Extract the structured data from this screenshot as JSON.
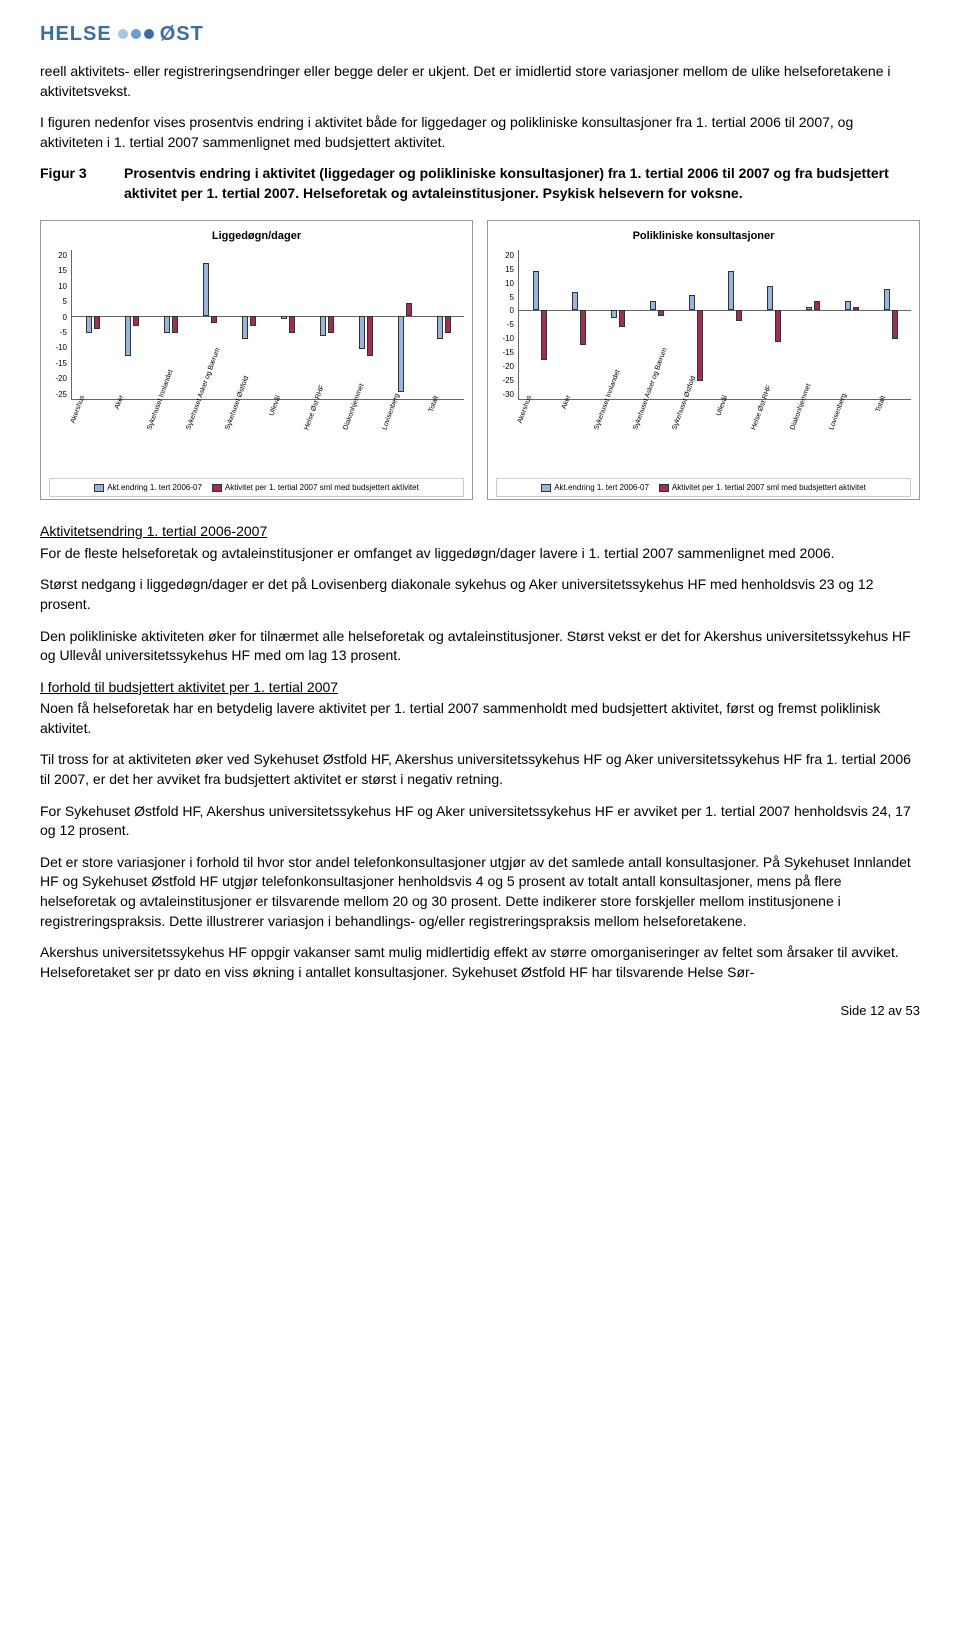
{
  "logo": {
    "left": "HELSE",
    "right": "ØST",
    "dot_colors": [
      "#a6c5e3",
      "#6f9dcc",
      "#3b6ea5"
    ]
  },
  "paragraphs": {
    "p1": "reell aktivitets- eller registreringsendringer eller begge deler er ukjent. Det er imidlertid store variasjoner mellom de ulike helseforetakene i aktivitetsvekst.",
    "p2": "I figuren nedenfor vises prosentvis endring i aktivitet både for liggedager og polikliniske konsultasjoner fra 1. tertial 2006 til 2007, og aktiviteten i 1. tertial 2007 sammenlignet med budsjettert aktivitet.",
    "fig_label": "Figur 3",
    "fig_title": "Prosentvis endring i aktivitet (liggedager og polikliniske konsultasjoner) fra 1. tertial 2006 til 2007 og fra budsjettert aktivitet per 1. tertial 2007. Helseforetak og avtaleinstitusjoner. Psykisk helsevern for voksne.",
    "h1": "Aktivitetsendring 1. tertial 2006-2007",
    "p3": "For de fleste helseforetak og avtaleinstitusjoner er omfanget av liggedøgn/dager lavere i 1. tertial 2007 sammenlignet med 2006.",
    "p4": "Størst nedgang i liggedøgn/dager er det på Lovisenberg diakonale sykehus og Aker universitetssykehus HF med henholdsvis 23 og 12 prosent.",
    "p5": "Den polikliniske aktiviteten øker for tilnærmet alle helseforetak og avtaleinstitusjoner. Størst vekst er det for Akershus universitetssykehus HF og Ullevål universitetssykehus HF med om lag 13 prosent.",
    "h2": "I forhold til budsjettert aktivitet per 1. tertial 2007",
    "p6": "Noen få helseforetak har en betydelig lavere aktivitet per 1. tertial 2007 sammenholdt med budsjettert aktivitet, først og fremst poliklinisk aktivitet.",
    "p7": "Til tross for at aktiviteten øker ved Sykehuset Østfold HF, Akershus universitetssykehus HF og Aker universitetssykehus HF fra 1. tertial 2006 til 2007, er det her avviket fra budsjettert aktivitet er størst i negativ retning.",
    "p8": "For Sykehuset Østfold HF, Akershus universitetssykehus HF og Aker universitetssykehus HF er avviket per 1. tertial 2007 henholdsvis 24, 17 og 12 prosent.",
    "p9": "Det er store variasjoner i forhold til hvor stor andel telefonkonsultasjoner utgjør av det samlede antall konsultasjoner. På Sykehuset Innlandet HF og Sykehuset Østfold HF utgjør telefonkonsultasjoner henholdsvis 4 og 5 prosent av totalt antall konsultasjoner, mens på flere helseforetak og avtaleinstitusjoner er tilsvarende mellom 20 og 30 prosent. Dette indikerer store forskjeller mellom institusjonene i registreringspraksis. Dette illustrerer variasjon i behandlings- og/eller registreringspraksis mellom helseforetakene.",
    "p10": "Akershus universitetssykehus HF oppgir vakanser samt mulig midlertidig effekt av større omorganiseringer av feltet som årsaker til avviket. Helseforetaket ser pr dato en viss økning i antallet konsultasjoner. Sykehuset Østfold HF har tilsvarende Helse Sør-",
    "footer": "Side 12 av 53"
  },
  "chart1": {
    "title": "Liggedøgn/dager",
    "type": "bar",
    "ymin": -25,
    "ymax": 20,
    "ytick_step": 5,
    "yticks": [
      "20",
      "15",
      "10",
      "5",
      "0",
      "-5",
      "-10",
      "-15",
      "-20",
      "-25"
    ],
    "categories": [
      "Akershus",
      "Aker",
      "Sykehuset Innlandet",
      "Sykehuset Asker og Bærum",
      "Sykehuset Østfold",
      "Ullevål",
      "Helse Øst RHF",
      "Diakonhjemmet",
      "Lovisenberg",
      "Totalt"
    ],
    "series": [
      {
        "name": "Akt.endring 1. tert 2006-07",
        "color": "#9ab4e0",
        "values": [
          -5,
          -12,
          -5,
          16,
          -7,
          -1,
          -6,
          -10,
          -23,
          -7
        ]
      },
      {
        "name": "Aktivitet per 1. tertial 2007 sml med budsjettert aktivitet",
        "color": "#a03050",
        "values": [
          -4,
          -3,
          -5,
          -2,
          -3,
          -5,
          -5,
          -12,
          4,
          -5
        ]
      }
    ],
    "background_color": "#ffffff",
    "border_color": "#999999",
    "label_fontsize": 7
  },
  "chart2": {
    "title": "Polikliniske konsultasjoner",
    "type": "bar",
    "ymin": -30,
    "ymax": 20,
    "ytick_step": 5,
    "yticks": [
      "20",
      "15",
      "10",
      "5",
      "0",
      "-5",
      "-10",
      "-15",
      "-20",
      "-25",
      "-30"
    ],
    "categories": [
      "Akershus",
      "Aker",
      "Sykehuset Innlandet",
      "Sykehuset Asker og Bærum",
      "Sykehuset Østfold",
      "Ullevål",
      "Helse Øst RHF",
      "Diakonhjemmet",
      "Lovisenberg",
      "Totalt"
    ],
    "series": [
      {
        "name": "Akt.endring 1. tert 2006-07",
        "color": "#9ab4e0",
        "values": [
          13,
          6,
          -3,
          3,
          5,
          13,
          8,
          1,
          3,
          7
        ]
      },
      {
        "name": "Aktivitet per 1. tertial 2007 sml med budsjettert aktivitet",
        "color": "#a03050",
        "values": [
          -17,
          -12,
          -6,
          -2,
          -24,
          -4,
          -11,
          3,
          1,
          -10
        ]
      }
    ],
    "background_color": "#ffffff",
    "border_color": "#999999",
    "label_fontsize": 7
  }
}
